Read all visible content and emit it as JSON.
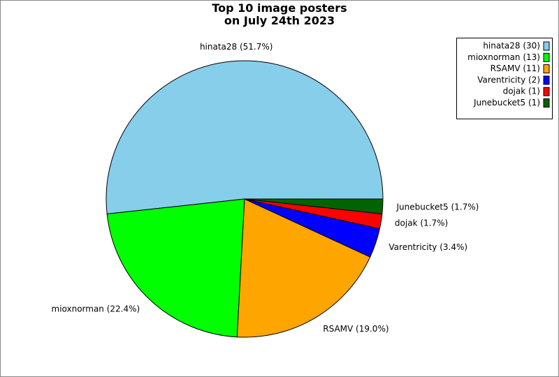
{
  "chart_data": {
    "type": "pie",
    "title": "Top 10 image posters\non July 24th 2023",
    "categories": [
      "hinata28 (30)",
      "mioxnorman (13)",
      "RSAMV (11)",
      "Varentricity (2)",
      "dojak (1)",
      "Junebucket5 (1)"
    ],
    "values": [
      30,
      13,
      11,
      2,
      1,
      1
    ],
    "labels": [
      "hinata28 (51.7%)",
      "mioxnorman (22.4%)",
      "RSAMV (19.0%)",
      "Varentricity (3.4%)",
      "dojak (1.7%)",
      "Junebucket5 (1.7%)"
    ],
    "colors": [
      "#87ceeb",
      "#00ff00",
      "#ffa500",
      "#0000ff",
      "#ff0000",
      "#006400"
    ],
    "legend": "upper right"
  }
}
